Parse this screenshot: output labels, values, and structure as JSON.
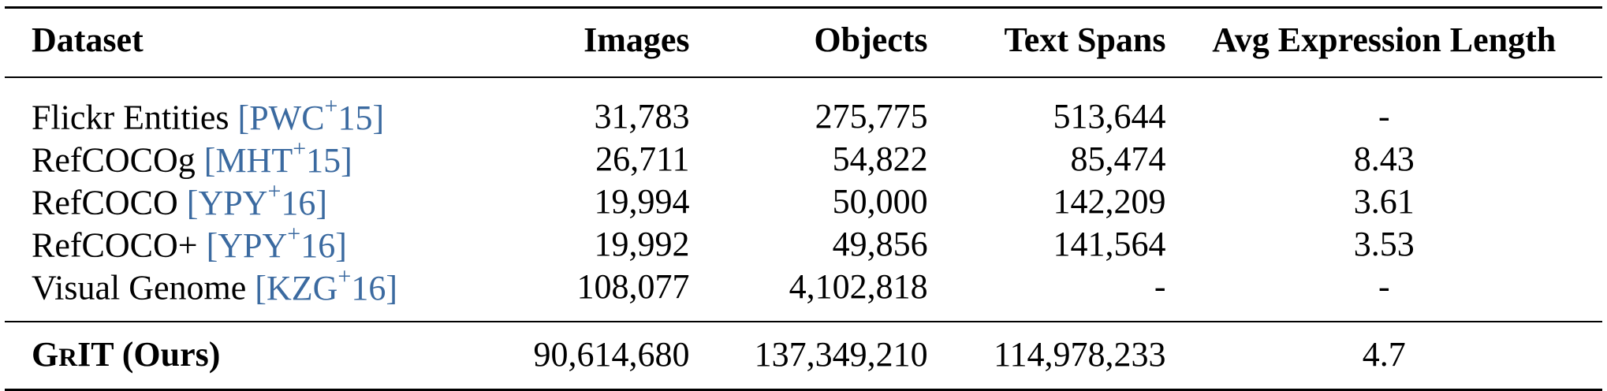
{
  "headers": {
    "dataset": "Dataset",
    "images": "Images",
    "objects": "Objects",
    "text_spans": "Text Spans",
    "avg_expr_len": "Avg Expression Length"
  },
  "rows": [
    {
      "name": "Flickr Entities",
      "cite_main": "PWC",
      "cite_sup": "+",
      "cite_year": "15",
      "images": "31,783",
      "objects": "275,775",
      "text_spans": "513,644",
      "avg": "-"
    },
    {
      "name": "RefCOCOg",
      "cite_main": "MHT",
      "cite_sup": "+",
      "cite_year": "15",
      "images": "26,711",
      "objects": "54,822",
      "text_spans": "85,474",
      "avg": "8.43"
    },
    {
      "name": "RefCOCO",
      "cite_main": "YPY",
      "cite_sup": "+",
      "cite_year": "16",
      "images": "19,994",
      "objects": "50,000",
      "text_spans": "142,209",
      "avg": "3.61"
    },
    {
      "name": "RefCOCO+",
      "cite_main": "YPY",
      "cite_sup": "+",
      "cite_year": "16",
      "images": "19,992",
      "objects": "49,856",
      "text_spans": "141,564",
      "avg": "3.53"
    },
    {
      "name": "Visual Genome",
      "cite_main": "KZG",
      "cite_sup": "+",
      "cite_year": "16",
      "images": "108,077",
      "objects": "4,102,818",
      "text_spans": "-",
      "avg": "-"
    }
  ],
  "ours": {
    "name_g": "G",
    "name_r": "R",
    "name_it": "IT",
    "suffix": " (Ours)",
    "images": "90,614,680",
    "objects": "137,349,210",
    "text_spans": "114,978,233",
    "avg": "4.7"
  },
  "colors": {
    "citation": "#3b6aa0",
    "text": "#000000"
  }
}
